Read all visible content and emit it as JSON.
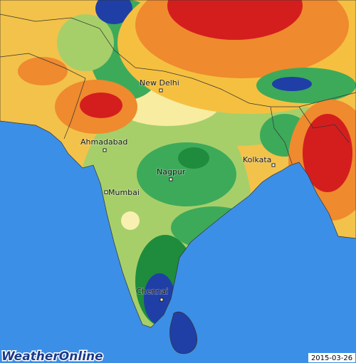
{
  "map": {
    "cities": [
      {
        "label": "New Delhi"
      },
      {
        "label": "Ahmadabad"
      },
      {
        "label": "Nagpur"
      },
      {
        "label": "Kolkata"
      },
      {
        "label": "Mumbai"
      },
      {
        "label": "Chennai"
      }
    ],
    "logo": "WeatherOnline",
    "date": "2015-03-26"
  }
}
